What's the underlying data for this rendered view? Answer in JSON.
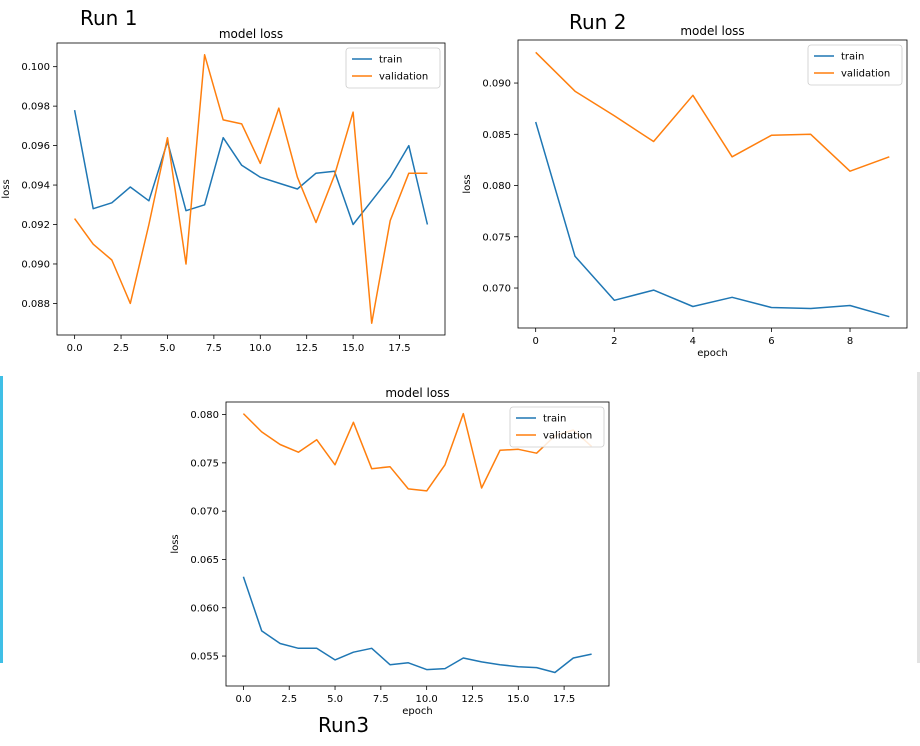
{
  "labels": {
    "run1": "Run 1",
    "run2": "Run 2",
    "run3": "Run3"
  },
  "chart_data": [
    {
      "type": "line",
      "title": "model loss",
      "xlabel": "",
      "ylabel": "loss",
      "xlim": [
        -0.95,
        19.95
      ],
      "ylim": [
        0.0864,
        0.1012
      ],
      "xticks": [
        0,
        2.5,
        5,
        7.5,
        10,
        12.5,
        15,
        17.5
      ],
      "xtick_labels": [
        "0.0",
        "2.5",
        "5.0",
        "7.5",
        "10.0",
        "12.5",
        "15.0",
        "17.5"
      ],
      "yticks": [
        0.088,
        0.09,
        0.092,
        0.094,
        0.096,
        0.098,
        0.1
      ],
      "ytick_labels": [
        "0.088",
        "0.090",
        "0.092",
        "0.094",
        "0.096",
        "0.098",
        "0.100"
      ],
      "legend_position": "top-right",
      "x": [
        0,
        1,
        2,
        3,
        4,
        5,
        6,
        7,
        8,
        9,
        10,
        11,
        12,
        13,
        14,
        15,
        16,
        17,
        18,
        19
      ],
      "series": [
        {
          "name": "train",
          "color": "#1f77b4",
          "values": [
            0.0978,
            0.0928,
            0.0931,
            0.0939,
            0.0932,
            0.0962,
            0.0927,
            0.093,
            0.0964,
            0.095,
            0.0944,
            0.0941,
            0.0938,
            0.0946,
            0.0947,
            0.092,
            0.0932,
            0.0944,
            0.096,
            0.092
          ]
        },
        {
          "name": "validation",
          "color": "#ff7f0e",
          "values": [
            0.0923,
            0.091,
            0.0902,
            0.088,
            0.092,
            0.0964,
            0.09,
            0.1006,
            0.0973,
            0.0971,
            0.0951,
            0.0979,
            0.0944,
            0.0921,
            0.0945,
            0.0977,
            0.087,
            0.0922,
            0.0946,
            0.0946
          ]
        }
      ]
    },
    {
      "type": "line",
      "title": "model loss",
      "xlabel": "epoch",
      "ylabel": "loss",
      "xlim": [
        -0.45,
        9.45
      ],
      "ylim": [
        0.0661,
        0.0942
      ],
      "xticks": [
        0,
        2,
        4,
        6,
        8
      ],
      "xtick_labels": [
        "0",
        "2",
        "4",
        "6",
        "8"
      ],
      "yticks": [
        0.07,
        0.075,
        0.08,
        0.085,
        0.09
      ],
      "ytick_labels": [
        "0.070",
        "0.075",
        "0.080",
        "0.085",
        "0.090"
      ],
      "legend_position": "top-right",
      "x": [
        0,
        1,
        2,
        3,
        4,
        5,
        6,
        7,
        8,
        9
      ],
      "series": [
        {
          "name": "train",
          "color": "#1f77b4",
          "values": [
            0.0862,
            0.0731,
            0.0688,
            0.0698,
            0.0682,
            0.0691,
            0.0681,
            0.068,
            0.0683,
            0.0672
          ]
        },
        {
          "name": "validation",
          "color": "#ff7f0e",
          "values": [
            0.093,
            0.0892,
            0.0868,
            0.0843,
            0.0888,
            0.0828,
            0.0849,
            0.085,
            0.0814,
            0.0828
          ]
        }
      ]
    },
    {
      "type": "line",
      "title": "model loss",
      "xlabel": "epoch",
      "ylabel": "loss",
      "xlim": [
        -0.95,
        19.95
      ],
      "ylim": [
        0.0519,
        0.0813
      ],
      "xticks": [
        0,
        2.5,
        5,
        7.5,
        10,
        12.5,
        15,
        17.5
      ],
      "xtick_labels": [
        "0.0",
        "2.5",
        "5.0",
        "7.5",
        "10.0",
        "12.5",
        "15.0",
        "17.5"
      ],
      "yticks": [
        0.055,
        0.06,
        0.065,
        0.07,
        0.075,
        0.08
      ],
      "ytick_labels": [
        "0.055",
        "0.060",
        "0.065",
        "0.070",
        "0.075",
        "0.080"
      ],
      "legend_position": "top-right",
      "x": [
        0,
        1,
        2,
        3,
        4,
        5,
        6,
        7,
        8,
        9,
        10,
        11,
        12,
        13,
        14,
        15,
        16,
        17,
        18,
        19
      ],
      "series": [
        {
          "name": "train",
          "color": "#1f77b4",
          "values": [
            0.0632,
            0.0576,
            0.0563,
            0.0558,
            0.0558,
            0.0546,
            0.0554,
            0.0558,
            0.0541,
            0.0543,
            0.0536,
            0.0537,
            0.0548,
            0.0544,
            0.0541,
            0.0539,
            0.0538,
            0.0533,
            0.0548,
            0.0552
          ]
        },
        {
          "name": "validation",
          "color": "#ff7f0e",
          "values": [
            0.0801,
            0.0782,
            0.0769,
            0.0761,
            0.0774,
            0.0748,
            0.0792,
            0.0744,
            0.0746,
            0.0723,
            0.0721,
            0.0748,
            0.0801,
            0.0724,
            0.0763,
            0.0764,
            0.076,
            0.0778,
            0.0784,
            0.0767
          ]
        }
      ]
    }
  ]
}
